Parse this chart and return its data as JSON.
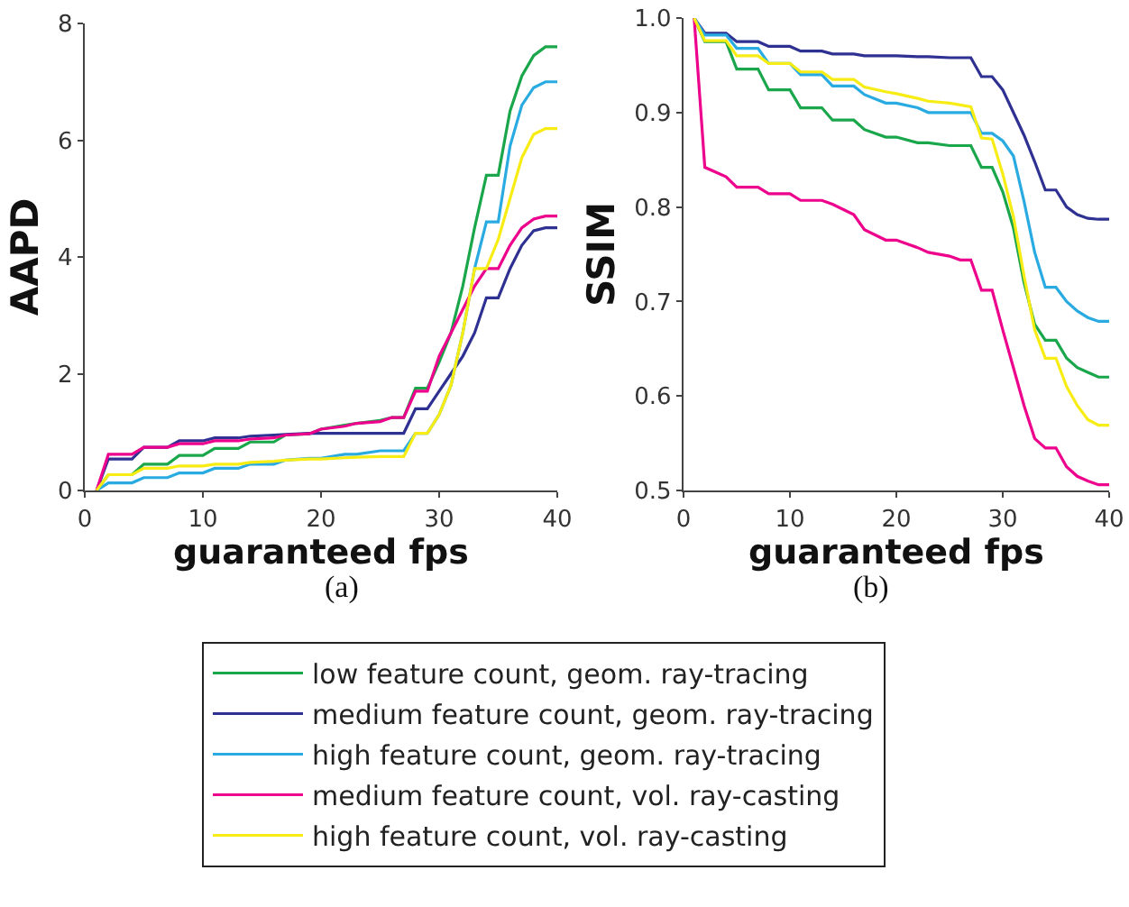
{
  "chart_data": [
    {
      "type": "line",
      "xlabel": "guaranteed fps",
      "ylabel": "AAPD",
      "annotations": [
        "(a)"
      ],
      "xlim": [
        0,
        40
      ],
      "xticks": [
        0,
        10,
        20,
        30,
        40
      ],
      "ylim": [
        0,
        8
      ],
      "yticks": [
        0,
        2,
        4,
        6,
        8
      ],
      "grid": false,
      "legend": "bottom",
      "x": [
        1,
        2,
        4,
        5,
        7,
        8,
        10,
        11,
        13,
        14,
        16,
        17,
        19,
        20,
        22,
        23,
        25,
        26,
        27,
        28,
        29,
        30,
        31,
        32,
        33,
        34,
        35,
        36,
        37,
        38,
        39,
        40
      ],
      "series": [
        {
          "name": "low feature count, geom. ray-tracing",
          "color": "#1aa64a",
          "values": [
            0,
            0.27,
            0.27,
            0.45,
            0.45,
            0.6,
            0.6,
            0.72,
            0.72,
            0.83,
            0.83,
            0.95,
            0.97,
            1.05,
            1.12,
            1.15,
            1.2,
            1.25,
            1.25,
            1.75,
            1.75,
            2.2,
            2.7,
            3.5,
            4.5,
            5.4,
            5.4,
            6.5,
            7.1,
            7.45,
            7.6,
            7.6
          ]
        },
        {
          "name": "medium feature count, geom. ray-tracing",
          "color": "#2e3192",
          "values": [
            0,
            0.54,
            0.54,
            0.74,
            0.74,
            0.85,
            0.85,
            0.9,
            0.9,
            0.93,
            0.95,
            0.96,
            0.98,
            0.98,
            0.98,
            0.98,
            0.98,
            0.98,
            0.98,
            1.4,
            1.4,
            1.7,
            2.0,
            2.3,
            2.7,
            3.3,
            3.3,
            3.8,
            4.2,
            4.45,
            4.5,
            4.5
          ]
        },
        {
          "name": "high feature count, geom. ray-tracing",
          "color": "#29abe2",
          "values": [
            0,
            0.13,
            0.13,
            0.22,
            0.22,
            0.3,
            0.3,
            0.38,
            0.38,
            0.45,
            0.45,
            0.52,
            0.55,
            0.55,
            0.62,
            0.62,
            0.68,
            0.68,
            0.68,
            0.98,
            0.98,
            1.3,
            1.8,
            2.7,
            3.8,
            4.6,
            4.6,
            5.9,
            6.6,
            6.9,
            7.0,
            7.0
          ]
        },
        {
          "name": "medium feature count, vol. ray-casting",
          "color": "#ec008c",
          "values": [
            0,
            0.62,
            0.62,
            0.74,
            0.74,
            0.8,
            0.8,
            0.85,
            0.85,
            0.88,
            0.9,
            0.95,
            0.97,
            1.05,
            1.1,
            1.15,
            1.18,
            1.25,
            1.25,
            1.7,
            1.7,
            2.3,
            2.7,
            3.1,
            3.5,
            3.8,
            3.8,
            4.2,
            4.5,
            4.65,
            4.7,
            4.7
          ]
        },
        {
          "name": "high feature count, vol. ray-casting",
          "color": "#f7ec13",
          "values": [
            0,
            0.27,
            0.27,
            0.38,
            0.38,
            0.42,
            0.42,
            0.45,
            0.45,
            0.48,
            0.5,
            0.52,
            0.54,
            0.54,
            0.56,
            0.57,
            0.58,
            0.58,
            0.58,
            0.98,
            0.98,
            1.3,
            1.8,
            2.7,
            3.8,
            3.8,
            4.3,
            5.0,
            5.7,
            6.1,
            6.2,
            6.2
          ]
        }
      ]
    },
    {
      "type": "line",
      "xlabel": "guaranteed fps",
      "ylabel": "SSIM",
      "annotations": [
        "(b)"
      ],
      "xlim": [
        0,
        40
      ],
      "xticks": [
        0,
        10,
        20,
        30,
        40
      ],
      "ylim": [
        0.5,
        1
      ],
      "yticks": [
        0.5,
        0.6,
        0.7,
        0.8,
        0.9,
        {
          "value": 1,
          "label": "1.0"
        }
      ],
      "grid": false,
      "x": [
        1,
        2,
        4,
        5,
        7,
        8,
        10,
        11,
        13,
        14,
        16,
        17,
        19,
        20,
        22,
        23,
        25,
        26,
        27,
        28,
        29,
        30,
        31,
        32,
        33,
        34,
        35,
        36,
        37,
        38,
        39,
        40
      ],
      "series": [
        {
          "color": "#1aa64a",
          "values": [
            1,
            0.975,
            0.975,
            0.946,
            0.946,
            0.924,
            0.924,
            0.905,
            0.905,
            0.892,
            0.892,
            0.882,
            0.874,
            0.874,
            0.868,
            0.868,
            0.865,
            0.865,
            0.865,
            0.842,
            0.842,
            0.816,
            0.778,
            0.72,
            0.676,
            0.659,
            0.659,
            0.64,
            0.63,
            0.625,
            0.62,
            0.62
          ]
        },
        {
          "color": "#2e3192",
          "values": [
            1,
            0.984,
            0.984,
            0.975,
            0.975,
            0.97,
            0.97,
            0.965,
            0.965,
            0.962,
            0.962,
            0.96,
            0.96,
            0.96,
            0.959,
            0.959,
            0.958,
            0.958,
            0.958,
            0.938,
            0.938,
            0.924,
            0.9,
            0.876,
            0.848,
            0.818,
            0.818,
            0.8,
            0.792,
            0.788,
            0.787,
            0.787
          ]
        },
        {
          "color": "#29abe2",
          "values": [
            1,
            0.982,
            0.982,
            0.968,
            0.968,
            0.952,
            0.952,
            0.94,
            0.94,
            0.928,
            0.928,
            0.919,
            0.91,
            0.91,
            0.905,
            0.9,
            0.9,
            0.9,
            0.9,
            0.878,
            0.878,
            0.87,
            0.854,
            0.806,
            0.752,
            0.715,
            0.715,
            0.7,
            0.69,
            0.683,
            0.679,
            0.679
          ]
        },
        {
          "color": "#ec008c",
          "values": [
            1,
            0.842,
            0.832,
            0.821,
            0.821,
            0.814,
            0.814,
            0.807,
            0.807,
            0.803,
            0.792,
            0.776,
            0.765,
            0.765,
            0.757,
            0.752,
            0.748,
            0.744,
            0.744,
            0.712,
            0.712,
            0.67,
            0.63,
            0.59,
            0.555,
            0.545,
            0.545,
            0.525,
            0.515,
            0.51,
            0.506,
            0.506
          ]
        },
        {
          "color": "#f7ec13",
          "values": [
            1,
            0.976,
            0.976,
            0.96,
            0.96,
            0.952,
            0.952,
            0.943,
            0.943,
            0.935,
            0.935,
            0.927,
            0.922,
            0.92,
            0.915,
            0.912,
            0.91,
            0.908,
            0.906,
            0.873,
            0.872,
            0.835,
            0.79,
            0.727,
            0.67,
            0.64,
            0.64,
            0.61,
            0.59,
            0.575,
            0.569,
            0.569
          ]
        }
      ]
    }
  ]
}
